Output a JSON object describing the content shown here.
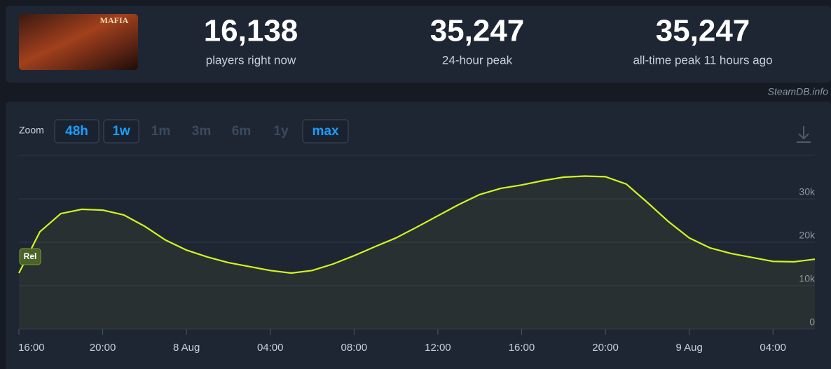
{
  "header": {
    "logo_text": "MAFIA",
    "stats": [
      {
        "value": "16,138",
        "label": "players right now"
      },
      {
        "value": "35,247",
        "label": "24-hour peak"
      },
      {
        "value": "35,247",
        "label": "all-time peak 11 hours ago"
      }
    ]
  },
  "source": "SteamDB.info",
  "zoom": {
    "label": "Zoom",
    "buttons": [
      {
        "label": "48h",
        "enabled": true
      },
      {
        "label": "1w",
        "enabled": true
      },
      {
        "label": "1m",
        "enabled": false
      },
      {
        "label": "3m",
        "enabled": false
      },
      {
        "label": "6m",
        "enabled": false
      },
      {
        "label": "1y",
        "enabled": false
      },
      {
        "label": "max",
        "enabled": true
      }
    ]
  },
  "chart_data": {
    "type": "line",
    "color": "#d2f51e",
    "categories": [
      "16:00",
      null,
      null,
      null,
      "20:00",
      null,
      null,
      null,
      "8 Aug",
      null,
      null,
      null,
      "04:00",
      null,
      null,
      null,
      "08:00",
      null,
      null,
      null,
      "12:00",
      null,
      null,
      null,
      "16:00",
      null,
      null,
      null,
      "20:00",
      null,
      null,
      null,
      "9 Aug",
      null,
      null,
      null,
      "04:00",
      null,
      null
    ],
    "values": [
      12900,
      22400,
      26600,
      27600,
      27400,
      26300,
      23700,
      20500,
      18200,
      16600,
      15300,
      14400,
      13500,
      12900,
      13500,
      15000,
      16900,
      19000,
      21000,
      23500,
      26100,
      28700,
      31000,
      32400,
      33200,
      34200,
      35000,
      35247,
      35100,
      33400,
      29200,
      24800,
      21000,
      18700,
      17400,
      16500,
      15600,
      15500,
      16100
    ],
    "ylim": [
      0,
      40000
    ],
    "yticks": [
      0,
      {
        "value": 10000,
        "label": "10k"
      },
      {
        "value": 20000,
        "label": "20k"
      },
      {
        "value": 30000,
        "label": "30k"
      }
    ],
    "grid": true,
    "annotations": [
      {
        "label": "Rel"
      }
    ]
  }
}
